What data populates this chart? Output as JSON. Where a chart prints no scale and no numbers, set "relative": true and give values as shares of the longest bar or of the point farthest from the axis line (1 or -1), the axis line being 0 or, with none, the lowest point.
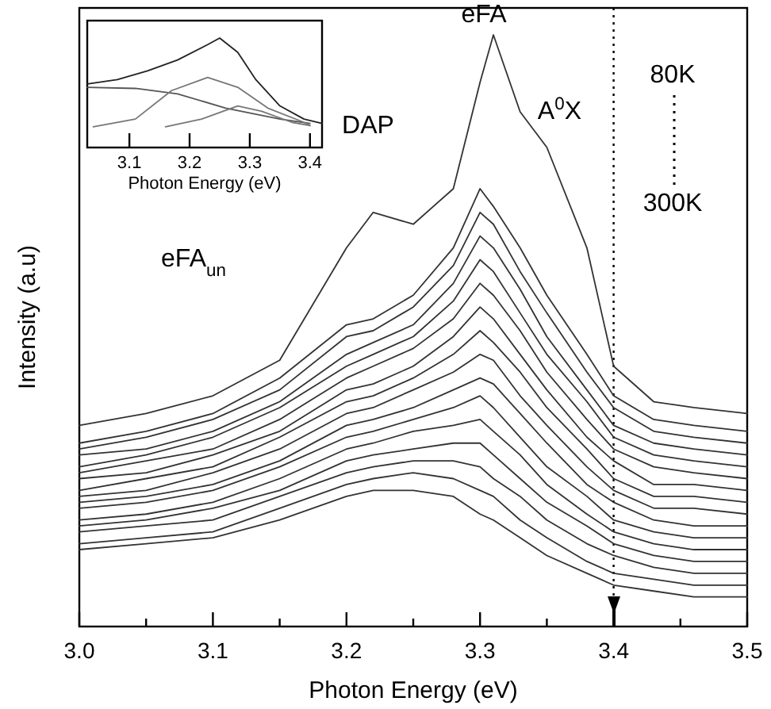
{
  "chart_data": [
    {
      "type": "line",
      "xlabel": "Photon Energy (eV)",
      "ylabel": "Intensity (a.u)",
      "relative": true,
      "tick_labels": "x",
      "xlim": [
        3.0,
        3.5
      ],
      "xticks": [
        {
          "value": 3,
          "label": "3.0"
        },
        {
          "value": 3.05,
          "label": null
        },
        3.1,
        {
          "value": 3.15,
          "label": null
        },
        3.2,
        {
          "value": 3.25,
          "label": null
        },
        3.3,
        {
          "value": 3.35,
          "label": null
        },
        3.4,
        {
          "value": 3.45,
          "label": null
        },
        3.5
      ],
      "x": [
        3.0,
        3.05,
        3.1,
        3.15,
        3.2,
        3.22,
        3.25,
        3.28,
        3.3,
        3.31,
        3.33,
        3.35,
        3.38,
        3.4,
        3.43,
        3.46,
        3.5
      ],
      "ref_lines": [
        {
          "axis": "x",
          "value": 3.4,
          "line_style": "dotted"
        }
      ],
      "annotations": [
        "eFA$_{un}$",
        "DAP",
        {
          "text": "eFA",
          "x": 3.31,
          "y": 1.0
        },
        {
          "text": "A$^{0}$X",
          "x": 3.35,
          "y": 0.81
        },
        "80K",
        "300K"
      ],
      "series": [
        {
          "color": "#333333",
          "values": [
            0.34,
            0.36,
            0.39,
            0.45,
            0.64,
            0.7,
            0.68,
            0.74,
            0.92,
            1.0,
            0.87,
            0.81,
            0.64,
            0.44,
            0.38,
            0.37,
            0.36
          ]
        },
        {
          "color": "#333333",
          "values": [
            0.31,
            0.33,
            0.36,
            0.42,
            0.51,
            0.52,
            0.56,
            0.64,
            0.74,
            0.71,
            0.64,
            0.56,
            0.46,
            0.39,
            0.35,
            0.34,
            0.33
          ]
        },
        {
          "color": "#333333",
          "values": [
            0.3,
            0.32,
            0.35,
            0.4,
            0.49,
            0.5,
            0.54,
            0.61,
            0.7,
            0.68,
            0.6,
            0.53,
            0.43,
            0.37,
            0.33,
            0.32,
            0.31
          ]
        },
        {
          "color": "#333333",
          "values": [
            0.29,
            0.3,
            0.33,
            0.38,
            0.46,
            0.48,
            0.51,
            0.58,
            0.66,
            0.64,
            0.57,
            0.49,
            0.4,
            0.34,
            0.31,
            0.3,
            0.29
          ]
        },
        {
          "color": "#333333",
          "values": [
            0.27,
            0.29,
            0.32,
            0.37,
            0.44,
            0.46,
            0.49,
            0.55,
            0.62,
            0.6,
            0.53,
            0.46,
            0.38,
            0.32,
            0.29,
            0.28,
            0.27
          ]
        },
        {
          "color": "#333333",
          "values": [
            0.26,
            0.28,
            0.3,
            0.35,
            0.42,
            0.44,
            0.47,
            0.52,
            0.58,
            0.56,
            0.5,
            0.43,
            0.35,
            0.3,
            0.27,
            0.26,
            0.25
          ]
        },
        {
          "color": "#333333",
          "values": [
            0.25,
            0.26,
            0.29,
            0.33,
            0.4,
            0.41,
            0.44,
            0.49,
            0.54,
            0.52,
            0.46,
            0.4,
            0.32,
            0.28,
            0.24,
            0.24,
            0.23
          ]
        },
        {
          "color": "#333333",
          "values": [
            0.23,
            0.25,
            0.27,
            0.32,
            0.38,
            0.39,
            0.42,
            0.46,
            0.5,
            0.48,
            0.43,
            0.37,
            0.3,
            0.25,
            0.22,
            0.22,
            0.21
          ]
        },
        {
          "color": "#333333",
          "values": [
            0.22,
            0.23,
            0.26,
            0.3,
            0.36,
            0.37,
            0.4,
            0.43,
            0.46,
            0.45,
            0.39,
            0.34,
            0.27,
            0.23,
            0.2,
            0.2,
            0.19
          ]
        },
        {
          "color": "#333333",
          "values": [
            0.21,
            0.22,
            0.24,
            0.28,
            0.34,
            0.35,
            0.37,
            0.4,
            0.42,
            0.41,
            0.36,
            0.31,
            0.24,
            0.21,
            0.18,
            0.17,
            0.17
          ]
        },
        {
          "color": "#333333",
          "values": [
            0.2,
            0.21,
            0.23,
            0.27,
            0.32,
            0.33,
            0.35,
            0.37,
            0.39,
            0.37,
            0.32,
            0.27,
            0.22,
            0.18,
            0.16,
            0.15,
            0.15
          ]
        },
        {
          "color": "#333333",
          "values": [
            0.18,
            0.19,
            0.21,
            0.25,
            0.3,
            0.31,
            0.33,
            0.34,
            0.35,
            0.33,
            0.29,
            0.24,
            0.19,
            0.16,
            0.14,
            0.13,
            0.13
          ]
        },
        {
          "color": "#333333",
          "values": [
            0.17,
            0.18,
            0.2,
            0.23,
            0.28,
            0.29,
            0.3,
            0.31,
            0.31,
            0.29,
            0.25,
            0.21,
            0.17,
            0.14,
            0.12,
            0.11,
            0.11
          ]
        },
        {
          "color": "#333333",
          "values": [
            0.16,
            0.17,
            0.18,
            0.22,
            0.26,
            0.27,
            0.28,
            0.28,
            0.27,
            0.25,
            0.22,
            0.18,
            0.14,
            0.12,
            0.1,
            0.09,
            0.09
          ]
        },
        {
          "color": "#333333",
          "values": [
            0.14,
            0.15,
            0.16,
            0.2,
            0.24,
            0.25,
            0.26,
            0.25,
            0.23,
            0.22,
            0.18,
            0.15,
            0.11,
            0.09,
            0.08,
            0.07,
            0.07
          ]
        },
        {
          "color": "#333333",
          "values": [
            0.13,
            0.14,
            0.15,
            0.18,
            0.22,
            0.23,
            0.23,
            0.22,
            0.19,
            0.18,
            0.15,
            0.12,
            0.09,
            0.07,
            0.06,
            0.05,
            0.05
          ]
        }
      ]
    },
    {
      "type": "line",
      "xlabel": "Photon Energy (eV)",
      "relative": true,
      "tick_labels": "x",
      "xlim": [
        3.03,
        3.42
      ],
      "xticks": [
        3.1,
        3.2,
        3.3,
        3.4
      ],
      "series": [
        {
          "color": "#222222",
          "x": [
            3.03,
            3.08,
            3.13,
            3.18,
            3.23,
            3.25,
            3.28,
            3.31,
            3.35,
            3.39,
            3.42
          ],
          "values": [
            0.58,
            0.62,
            0.7,
            0.8,
            0.94,
            1.0,
            0.87,
            0.62,
            0.38,
            0.26,
            0.22
          ]
        },
        {
          "color": "#555555",
          "x": [
            3.03,
            3.11,
            3.18,
            3.26,
            3.35,
            3.4
          ],
          "values": [
            0.55,
            0.54,
            0.49,
            0.36,
            0.26,
            0.22
          ]
        },
        {
          "color": "#777777",
          "x": [
            3.04,
            3.11,
            3.17,
            3.23,
            3.28,
            3.33,
            3.39,
            3.4
          ],
          "values": [
            0.19,
            0.26,
            0.52,
            0.64,
            0.55,
            0.36,
            0.23,
            0.2
          ]
        },
        {
          "color": "#777777",
          "x": [
            3.16,
            3.22,
            3.28,
            3.32,
            3.37,
            3.4
          ],
          "values": [
            0.19,
            0.26,
            0.38,
            0.33,
            0.23,
            0.2
          ]
        }
      ]
    }
  ]
}
